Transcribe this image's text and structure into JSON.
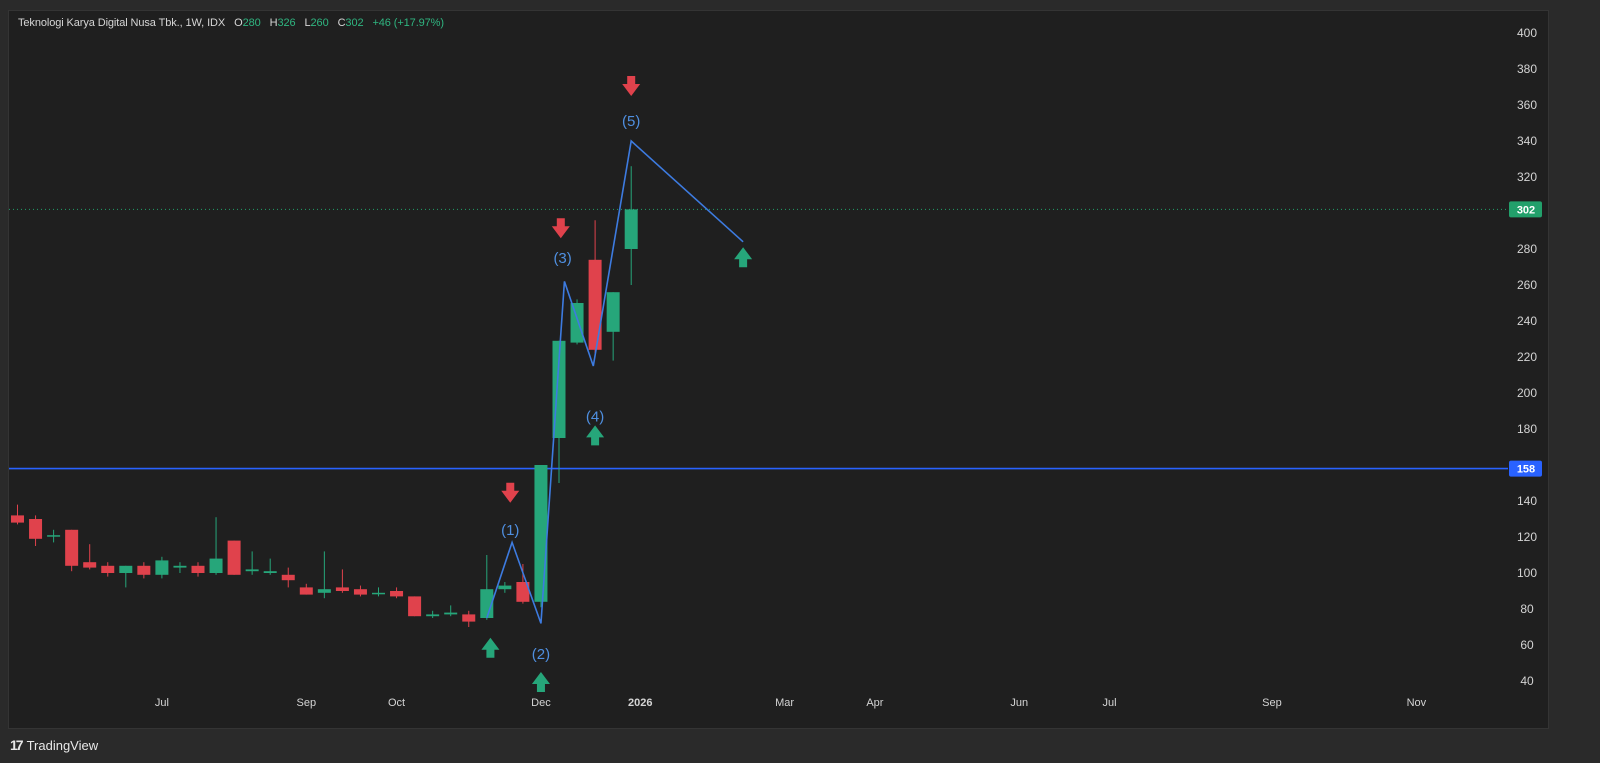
{
  "header": {
    "symbol": "Teknologi Karya Digital Nusa Tbk., 1W, IDX",
    "o_label": "O",
    "o_value": "280",
    "h_label": "H",
    "h_value": "326",
    "l_label": "L",
    "l_value": "260",
    "c_label": "C",
    "c_value": "302",
    "change": "+46 (+17.97%)"
  },
  "brand": {
    "icon": "tradingview-logo-icon",
    "name": "TradingView"
  },
  "colors": {
    "up": "#26a67a",
    "down": "#e0424c",
    "line": "#3d7be0",
    "label": "#4f8fe0",
    "price_tag_up": "#22a06b",
    "price_tag_level": "#2962ff"
  },
  "chart_data": {
    "type": "candlestick",
    "title": "Teknologi Karya Digital Nusa Tbk., 1W, IDX",
    "ylim": [
      40,
      400
    ],
    "y_ticks": [
      40,
      60,
      80,
      100,
      120,
      140,
      160,
      180,
      200,
      220,
      240,
      260,
      280,
      300,
      320,
      340,
      360,
      380,
      400
    ],
    "y_tick_labels": [
      "40",
      "60",
      "80",
      "100",
      "120",
      "140",
      "",
      "180",
      "200",
      "220",
      "240",
      "260",
      "280",
      "",
      "320",
      "340",
      "360",
      "380",
      "400"
    ],
    "x_labels": [
      {
        "text": "Jul",
        "bar": 8,
        "bold": false
      },
      {
        "text": "Sep",
        "bar": 16,
        "bold": false
      },
      {
        "text": "Oct",
        "bar": 21,
        "bold": false
      },
      {
        "text": "Dec",
        "bar": 29,
        "bold": false
      },
      {
        "text": "2026",
        "bar": 34.5,
        "bold": true
      },
      {
        "text": "Mar",
        "bar": 42.5,
        "bold": false
      },
      {
        "text": "Apr",
        "bar": 47.5,
        "bold": false
      },
      {
        "text": "Jun",
        "bar": 55.5,
        "bold": false
      },
      {
        "text": "Jul",
        "bar": 60.5,
        "bold": false
      },
      {
        "text": "Sep",
        "bar": 69.5,
        "bold": false
      },
      {
        "text": "Nov",
        "bar": 77.5,
        "bold": false
      }
    ],
    "candles": [
      {
        "o": 132,
        "h": 138,
        "l": 127,
        "c": 128
      },
      {
        "o": 130,
        "h": 132,
        "l": 115,
        "c": 119
      },
      {
        "o": 121,
        "h": 124,
        "l": 117,
        "c": 121
      },
      {
        "o": 124,
        "h": 124,
        "l": 101,
        "c": 104
      },
      {
        "o": 106,
        "h": 116,
        "l": 102,
        "c": 103
      },
      {
        "o": 104,
        "h": 106,
        "l": 98,
        "c": 100
      },
      {
        "o": 100,
        "h": 104,
        "l": 92,
        "c": 104
      },
      {
        "o": 104,
        "h": 106,
        "l": 97,
        "c": 99
      },
      {
        "o": 99,
        "h": 109,
        "l": 97,
        "c": 107
      },
      {
        "o": 103,
        "h": 106,
        "l": 100,
        "c": 104
      },
      {
        "o": 104,
        "h": 106,
        "l": 98,
        "c": 100
      },
      {
        "o": 100,
        "h": 131,
        "l": 99,
        "c": 108
      },
      {
        "o": 118,
        "h": 118,
        "l": 99,
        "c": 99
      },
      {
        "o": 101,
        "h": 112,
        "l": 99,
        "c": 102
      },
      {
        "o": 100,
        "h": 108,
        "l": 99,
        "c": 101
      },
      {
        "o": 99,
        "h": 103,
        "l": 92,
        "c": 96
      },
      {
        "o": 92,
        "h": 94,
        "l": 88,
        "c": 88
      },
      {
        "o": 89,
        "h": 112,
        "l": 86,
        "c": 91
      },
      {
        "o": 92,
        "h": 102,
        "l": 89,
        "c": 90
      },
      {
        "o": 91,
        "h": 93,
        "l": 87,
        "c": 88
      },
      {
        "o": 89,
        "h": 92,
        "l": 87,
        "c": 89
      },
      {
        "o": 90,
        "h": 92,
        "l": 86,
        "c": 87
      },
      {
        "o": 87,
        "h": 87,
        "l": 76,
        "c": 76
      },
      {
        "o": 76,
        "h": 79,
        "l": 75,
        "c": 77
      },
      {
        "o": 77,
        "h": 82,
        "l": 76,
        "c": 78
      },
      {
        "o": 77,
        "h": 79,
        "l": 70,
        "c": 73
      },
      {
        "o": 75,
        "h": 110,
        "l": 74,
        "c": 91
      },
      {
        "o": 91,
        "h": 95,
        "l": 89,
        "c": 93
      },
      {
        "o": 95,
        "h": 105,
        "l": 83,
        "c": 84
      },
      {
        "o": 84,
        "h": 160,
        "l": 81,
        "c": 160
      },
      {
        "o": 175,
        "h": 229,
        "l": 150,
        "c": 229
      },
      {
        "o": 228,
        "h": 252,
        "l": 227,
        "c": 250
      },
      {
        "o": 274,
        "h": 296,
        "l": 222,
        "c": 224
      },
      {
        "o": 234,
        "h": 256,
        "l": 218,
        "c": 256
      },
      {
        "o": 280,
        "h": 326,
        "l": 260,
        "c": 302
      }
    ],
    "price_lines": [
      {
        "value": 158,
        "label": "158",
        "style": "solid"
      },
      {
        "value": 302,
        "label": "302",
        "style": "dotted"
      }
    ],
    "wave_path": [
      {
        "bar": 26.0,
        "y": 75
      },
      {
        "bar": 27.4,
        "y": 117
      },
      {
        "bar": 29.0,
        "y": 72
      },
      {
        "bar": 30.3,
        "y": 262
      },
      {
        "bar": 31.9,
        "y": 215
      },
      {
        "bar": 34.0,
        "y": 340
      },
      {
        "bar": 40.2,
        "y": 284
      }
    ],
    "wave_labels": [
      {
        "text": "(1)",
        "bar": 27.3,
        "y": 124
      },
      {
        "text": "(2)",
        "bar": 29.0,
        "y": 55
      },
      {
        "text": "(3)",
        "bar": 30.2,
        "y": 275
      },
      {
        "text": "(4)",
        "bar": 32.0,
        "y": 187
      },
      {
        "text": "(5)",
        "bar": 34.0,
        "y": 351
      }
    ],
    "signals": [
      {
        "dir": "down",
        "bar": 27.3,
        "y": 144
      },
      {
        "dir": "up",
        "bar": 26.2,
        "y": 59
      },
      {
        "dir": "up",
        "bar": 29.0,
        "y": 40
      },
      {
        "dir": "down",
        "bar": 30.1,
        "y": 291
      },
      {
        "dir": "up",
        "bar": 32.0,
        "y": 177
      },
      {
        "dir": "down",
        "bar": 34.0,
        "y": 370
      },
      {
        "dir": "up",
        "bar": 40.2,
        "y": 276
      }
    ]
  }
}
